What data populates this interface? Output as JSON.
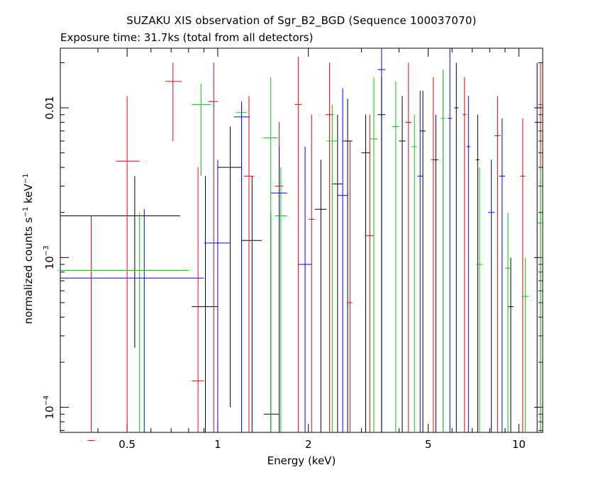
{
  "chart_data": {
    "type": "scatter",
    "title": "SUZAKU XIS observation of Sgr_B2_BGD (Sequence 100037070)",
    "subtitle": "Exposure time: 31.7ks (total from all detectors)",
    "xlabel": "Energy (keV)",
    "ylabel": {
      "main": "normalized counts s",
      "exp1": "−1",
      "mid": " keV",
      "exp2": "−1"
    },
    "x_scale": "log",
    "y_scale": "log",
    "xlim": [
      0.3,
      12.0
    ],
    "ylim": [
      6.8e-05,
      0.025
    ],
    "x_ticks": [
      {
        "value": 0.5,
        "label": "0.5"
      },
      {
        "value": 1,
        "label": "1"
      },
      {
        "value": 2,
        "label": "2"
      },
      {
        "value": 5,
        "label": "5"
      },
      {
        "value": 10,
        "label": "10"
      }
    ],
    "y_ticks": [
      {
        "value": 0.0001,
        "base": "10",
        "exp": "−4"
      },
      {
        "value": 0.001,
        "base": "10",
        "exp": "−3"
      },
      {
        "value": 0.01,
        "base": "0.01",
        "exp": ""
      }
    ],
    "series": [
      {
        "color": "#000000",
        "points": [
          [
            0.53,
            0.3,
            0.75,
            0.0019,
            0.00025,
            0.0035
          ],
          [
            0.91,
            0.82,
            1.0,
            0.00047,
            6e-05,
            0.0035
          ],
          [
            1.1,
            1.0,
            1.2,
            0.004,
            0.0001,
            0.0075
          ],
          [
            1.3,
            1.2,
            1.4,
            0.0013,
            6e-05,
            0.0035
          ],
          [
            1.5,
            1.42,
            1.6,
            9e-05,
            6e-05,
            0.002
          ],
          [
            2.2,
            2.1,
            2.3,
            0.0021,
            6e-05,
            0.0045
          ],
          [
            2.5,
            2.4,
            2.6,
            0.0031,
            6e-05,
            0.009
          ],
          [
            2.7,
            2.6,
            2.8,
            0.006,
            6e-05,
            0.0115
          ],
          [
            3.1,
            3.0,
            3.2,
            0.005,
            6e-05,
            0.009
          ],
          [
            3.5,
            3.4,
            3.6,
            0.009,
            6e-05,
            0.016
          ],
          [
            4.1,
            4.0,
            4.2,
            0.006,
            6e-05,
            0.012
          ],
          [
            4.8,
            4.7,
            4.9,
            0.007,
            6e-05,
            0.013
          ],
          [
            5.3,
            5.2,
            5.4,
            0.0045,
            6e-05,
            0.009
          ],
          [
            6.2,
            6.1,
            6.3,
            0.01,
            6e-05,
            0.02
          ],
          [
            7.3,
            7.2,
            7.4,
            0.0045,
            6e-05,
            0.009
          ],
          [
            9.4,
            9.2,
            9.6,
            0.00047,
            6e-05,
            0.001
          ],
          [
            11.5,
            11.3,
            11.7,
            0.008,
            6e-05,
            0.02
          ]
        ]
      },
      {
        "color": "#ff0000",
        "points": [
          [
            0.38,
            0.37,
            0.39,
            6e-05,
            6e-05,
            0.0019
          ],
          [
            0.5,
            0.46,
            0.55,
            0.0044,
            6e-05,
            0.012
          ],
          [
            0.71,
            0.67,
            0.76,
            0.015,
            0.006,
            0.02
          ],
          [
            0.86,
            0.82,
            0.9,
            0.00015,
            6e-05,
            0.004
          ],
          [
            0.97,
            0.93,
            1.0,
            0.011,
            6e-05,
            0.02
          ],
          [
            1.27,
            1.22,
            1.32,
            0.0035,
            6e-05,
            0.012
          ],
          [
            1.6,
            1.55,
            1.65,
            0.003,
            6e-05,
            0.008
          ],
          [
            1.85,
            1.8,
            1.9,
            0.0105,
            6e-05,
            0.022
          ],
          [
            2.05,
            2.0,
            2.1,
            0.0018,
            6e-05,
            0.009
          ],
          [
            2.35,
            2.28,
            2.42,
            0.009,
            6e-05,
            0.02
          ],
          [
            2.75,
            2.7,
            2.8,
            0.0005,
            6e-05,
            0.006
          ],
          [
            3.2,
            3.1,
            3.3,
            0.0014,
            6e-05,
            0.009
          ],
          [
            4.3,
            4.2,
            4.4,
            0.008,
            6e-05,
            0.02
          ],
          [
            5.2,
            5.1,
            5.3,
            0.0045,
            6e-05,
            0.016
          ],
          [
            6.6,
            6.5,
            6.7,
            0.009,
            6e-05,
            0.016
          ],
          [
            8.5,
            8.3,
            8.7,
            0.0065,
            6e-05,
            0.012
          ],
          [
            10.3,
            10.1,
            10.5,
            0.0035,
            6e-05,
            0.0085
          ],
          [
            11.8,
            11.6,
            12.0,
            0.0105,
            6e-05,
            0.02
          ]
        ]
      },
      {
        "color": "#00cc00",
        "points": [
          [
            0.55,
            0.3,
            0.8,
            0.00082,
            6e-05,
            0.002
          ],
          [
            0.88,
            0.82,
            0.95,
            0.0105,
            0.0035,
            0.0145
          ],
          [
            1.2,
            1.15,
            1.25,
            0.0093,
            6e-05,
            0.011
          ],
          [
            1.5,
            1.42,
            1.58,
            0.0063,
            6e-05,
            0.016
          ],
          [
            1.62,
            1.55,
            1.7,
            0.0019,
            6e-05,
            0.004
          ],
          [
            2.4,
            2.3,
            2.5,
            0.006,
            6e-05,
            0.0105
          ],
          [
            3.3,
            3.2,
            3.4,
            0.0062,
            6e-05,
            0.016
          ],
          [
            3.9,
            3.8,
            4.0,
            0.0075,
            6e-05,
            0.015
          ],
          [
            4.5,
            4.4,
            4.6,
            0.0055,
            6e-05,
            0.009
          ],
          [
            5.6,
            5.5,
            5.7,
            0.0085,
            6e-05,
            0.018
          ],
          [
            7.4,
            7.2,
            7.6,
            0.0009,
            6e-05,
            0.004
          ],
          [
            9.2,
            9.0,
            9.4,
            0.00085,
            6e-05,
            0.002
          ],
          [
            10.5,
            10.2,
            10.8,
            0.00055,
            6e-05,
            0.001
          ],
          [
            11.8,
            11.5,
            12.0,
            0.0017,
            6e-05,
            0.004
          ]
        ]
      },
      {
        "color": "#0000ff",
        "points": [
          [
            0.57,
            0.3,
            0.9,
            0.00073,
            6e-05,
            0.0021
          ],
          [
            1.0,
            0.9,
            1.1,
            0.00125,
            6e-05,
            0.0045
          ],
          [
            1.2,
            1.13,
            1.28,
            0.0087,
            6e-05,
            0.011
          ],
          [
            1.6,
            1.5,
            1.7,
            0.0027,
            6e-05,
            0.0055
          ],
          [
            1.95,
            1.85,
            2.05,
            0.0009,
            6e-05,
            0.0055
          ],
          [
            2.6,
            2.5,
            2.7,
            0.0026,
            6e-05,
            0.0135
          ],
          [
            3.5,
            3.4,
            3.6,
            0.018,
            6e-05,
            0.025
          ],
          [
            4.7,
            4.6,
            4.8,
            0.0035,
            6e-05,
            0.013
          ],
          [
            5.9,
            5.8,
            6.0,
            0.0085,
            6e-05,
            0.025
          ],
          [
            6.8,
            6.7,
            6.9,
            0.0055,
            6e-05,
            0.012
          ],
          [
            8.1,
            7.9,
            8.3,
            0.002,
            6e-05,
            0.0045
          ],
          [
            8.8,
            8.6,
            9.0,
            0.0035,
            6e-05,
            0.0085
          ]
        ]
      }
    ]
  }
}
